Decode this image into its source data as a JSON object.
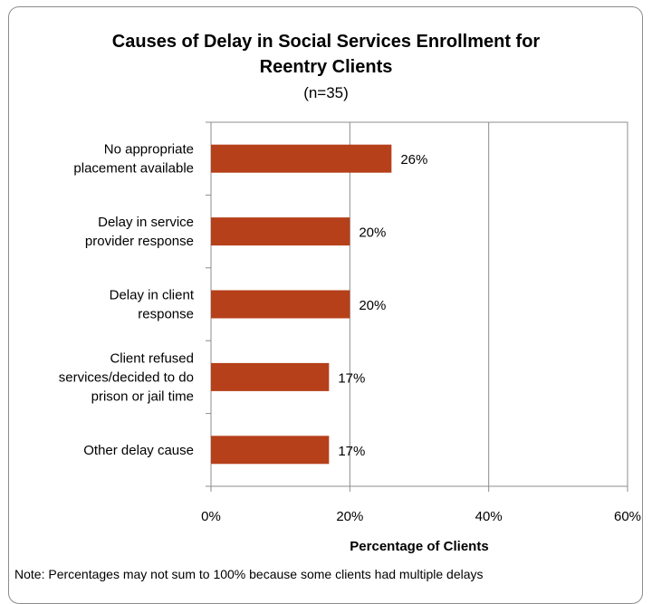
{
  "chart_data": {
    "type": "bar",
    "orientation": "horizontal",
    "title": "Causes of Delay in Social Services Enrollment for Reentry Clients",
    "subtitle": "(n=35)",
    "categories": [
      [
        "No appropriate",
        "placement available"
      ],
      [
        "Delay in service",
        "provider response"
      ],
      [
        "Delay in client",
        "response"
      ],
      [
        "Client refused",
        "services/decided to do",
        "prison or jail time"
      ],
      [
        "Other delay cause"
      ]
    ],
    "values": [
      26,
      20,
      20,
      17,
      17
    ],
    "value_labels": [
      "26%",
      "20%",
      "20%",
      "17%",
      "17%"
    ],
    "xlabel": "Percentage of Clients",
    "xlim": [
      0,
      60
    ],
    "xticks": [
      0,
      20,
      40,
      60
    ],
    "xtick_labels": [
      "0%",
      "20%",
      "40%",
      "60%"
    ],
    "bar_color": "#b5401a",
    "grid": "vertical major gridlines"
  },
  "note": "Note: Percentages  may not sum to 100% because some clients had multiple delays"
}
